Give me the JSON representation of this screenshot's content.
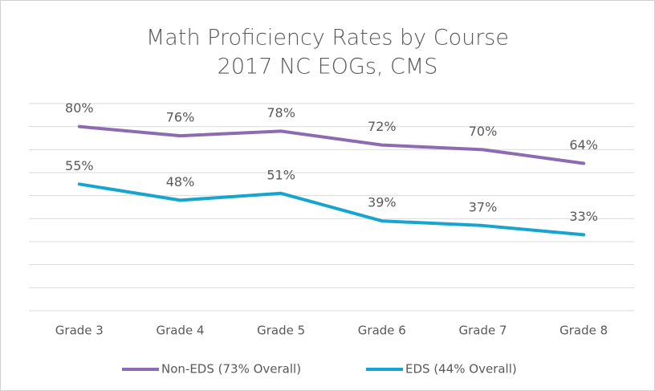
{
  "chart_data": {
    "type": "line",
    "title": "Math Proficiency Rates by Course",
    "subtitle": "2017 NC EOGs, CMS",
    "categories": [
      "Grade 3",
      "Grade 4",
      "Grade 5",
      "Grade 6",
      "Grade 7",
      "Grade 8"
    ],
    "series": [
      {
        "name": "Non-EDS (73% Overall)",
        "color": "#8c6bb1",
        "values": [
          80,
          76,
          78,
          72,
          70,
          64
        ],
        "value_labels": [
          "80%",
          "76%",
          "78%",
          "72%",
          "70%",
          "64%"
        ]
      },
      {
        "name": "EDS (44% Overall)",
        "color": "#17a5cf",
        "values": [
          55,
          48,
          51,
          39,
          37,
          33
        ],
        "value_labels": [
          "55%",
          "48%",
          "51%",
          "39%",
          "37%",
          "33%"
        ]
      }
    ],
    "ylim": [
      0,
      90
    ],
    "yticks": [
      0,
      10,
      20,
      30,
      40,
      50,
      60,
      70,
      80,
      90
    ],
    "grid": true,
    "legend": "bottom"
  }
}
